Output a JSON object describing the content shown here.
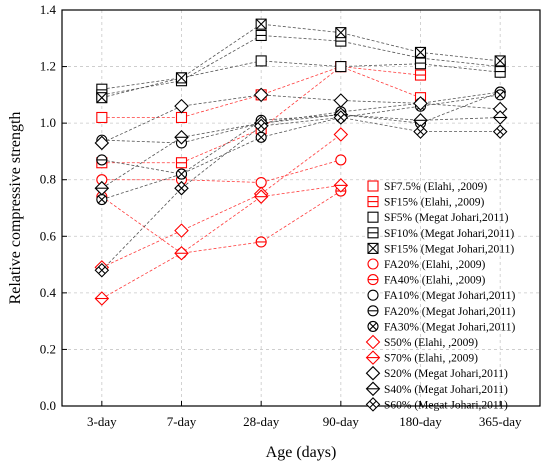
{
  "chart_data": {
    "type": "line",
    "title": "",
    "xlabel": "Age (days)",
    "ylabel": "Relative compressive strength",
    "categories": [
      "3-day",
      "7-day",
      "28-day",
      "90-day",
      "180-day",
      "365-day"
    ],
    "ylim": [
      0.0,
      1.4
    ],
    "yticks": [
      "0.0",
      "0.2",
      "0.4",
      "0.6",
      "0.8",
      "1.0",
      "1.2",
      "1.4"
    ],
    "grid": true,
    "legend_position": "lower-right",
    "series": [
      {
        "name": "SF7.5% (Elahi, ,2009)",
        "marker": "square",
        "color": "#ff0000",
        "values": [
          1.02,
          1.02,
          1.1,
          1.2,
          1.09,
          null
        ]
      },
      {
        "name": "SF15% (Elahi, ,2009)",
        "marker": "square-hline",
        "color": "#ff0000",
        "values": [
          0.86,
          0.86,
          0.98,
          1.2,
          1.17,
          null
        ]
      },
      {
        "name": "SF5% (Megat Johari,2011)",
        "marker": "square",
        "color": "#000000",
        "values": [
          1.12,
          1.16,
          1.22,
          1.2,
          1.21,
          1.18
        ]
      },
      {
        "name": "SF10% (Megat Johari,2011)",
        "marker": "square-hline",
        "color": "#000000",
        "values": [
          1.1,
          1.15,
          1.31,
          1.29,
          1.23,
          1.2
        ]
      },
      {
        "name": "SF15% (Megat Johari,2011)",
        "marker": "square-x",
        "color": "#000000",
        "values": [
          1.09,
          1.16,
          1.35,
          1.32,
          1.25,
          1.22
        ]
      },
      {
        "name": "FA20% (Elahi, ,2009)",
        "marker": "circle",
        "color": "#ff0000",
        "values": [
          0.8,
          0.8,
          0.79,
          0.87,
          null,
          null
        ]
      },
      {
        "name": "FA40% (Elahi, ,2009)",
        "marker": "circle-hline",
        "color": "#ff0000",
        "values": [
          0.74,
          0.54,
          0.58,
          0.76,
          null,
          null
        ]
      },
      {
        "name": "FA10% (Megat Johari,2011)",
        "marker": "circle",
        "color": "#000000",
        "values": [
          0.94,
          0.93,
          1.0,
          1.04,
          1.07,
          1.11
        ]
      },
      {
        "name": "FA20% (Megat Johari,2011)",
        "marker": "circle-hline",
        "color": "#000000",
        "values": [
          0.87,
          0.82,
          1.01,
          1.03,
          1.0,
          1.11
        ]
      },
      {
        "name": "FA30% (Megat Johari,2011)",
        "marker": "circle-x",
        "color": "#000000",
        "values": [
          0.73,
          0.82,
          0.95,
          1.02,
          1.06,
          1.1
        ]
      },
      {
        "name": "S50% (Elahi, ,2009)",
        "marker": "diamond",
        "color": "#ff0000",
        "values": [
          0.49,
          0.62,
          0.75,
          0.96,
          null,
          null
        ]
      },
      {
        "name": "S70% (Elahi, ,2009)",
        "marker": "diamond-hline",
        "color": "#ff0000",
        "values": [
          0.38,
          0.54,
          0.74,
          0.78,
          null,
          null
        ]
      },
      {
        "name": "S20% (Megat Johari,2011)",
        "marker": "diamond",
        "color": "#000000",
        "values": [
          0.93,
          1.06,
          1.1,
          1.08,
          1.07,
          1.05
        ]
      },
      {
        "name": "S40% (Megat Johari,2011)",
        "marker": "diamond-hline",
        "color": "#000000",
        "values": [
          0.77,
          0.95,
          1.0,
          1.03,
          1.01,
          1.02
        ]
      },
      {
        "name": "S60% (Megat Johari,2011)",
        "marker": "diamond-x",
        "color": "#000000",
        "values": [
          0.48,
          0.77,
          0.99,
          1.02,
          0.97,
          0.97
        ]
      }
    ]
  }
}
